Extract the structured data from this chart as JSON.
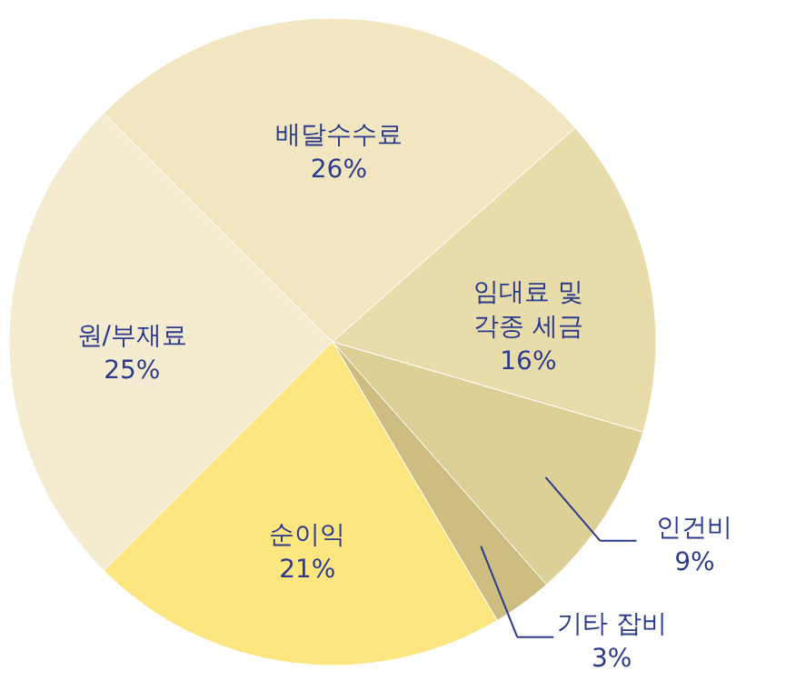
{
  "chart_data": {
    "type": "pie",
    "categories": [
      "배달수수료",
      "임대료 및 각종 세금",
      "인건비",
      "기타 잡비",
      "순이익",
      "원/부재료"
    ],
    "values": [
      26,
      16,
      9,
      3,
      21,
      25
    ],
    "value_labels": [
      "26%",
      "16%",
      "9%",
      "3%",
      "21%",
      "25%"
    ],
    "colors": [
      "#f1e6bf",
      "#e8dcaa",
      "#ddd096",
      "#cdbd80",
      "#fde580",
      "#f4ebd1"
    ]
  }
}
